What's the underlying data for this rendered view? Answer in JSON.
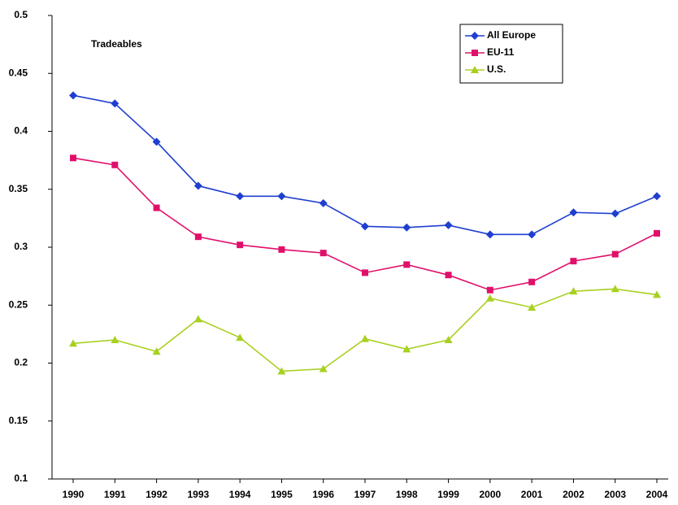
{
  "chart_data": {
    "type": "line",
    "annotation": "Tradeables",
    "categories": [
      "1990",
      "1991",
      "1992",
      "1993",
      "1994",
      "1995",
      "1996",
      "1997",
      "1998",
      "1999",
      "2000",
      "2001",
      "2002",
      "2003",
      "2004"
    ],
    "series": [
      {
        "name": "All Europe",
        "color": "#1f3fd0",
        "marker": "diamond",
        "values": [
          0.431,
          0.424,
          0.391,
          0.353,
          0.344,
          0.344,
          0.338,
          0.318,
          0.317,
          0.319,
          0.311,
          0.311,
          0.33,
          0.329,
          0.344
        ]
      },
      {
        "name": "EU-11",
        "color": "#e0106a",
        "marker": "square",
        "values": [
          0.377,
          0.371,
          0.334,
          0.309,
          0.302,
          0.298,
          0.295,
          0.278,
          0.285,
          0.276,
          0.263,
          0.27,
          0.288,
          0.294,
          0.312
        ]
      },
      {
        "name": "U.S.",
        "color": "#a8d020",
        "marker": "triangle",
        "values": [
          0.217,
          0.22,
          0.21,
          0.238,
          0.222,
          0.193,
          0.195,
          0.221,
          0.212,
          0.22,
          0.256,
          0.248,
          0.262,
          0.264,
          0.259
        ]
      }
    ],
    "ylim": [
      0.1,
      0.5
    ],
    "yticks": [
      0.1,
      0.15,
      0.2,
      0.25,
      0.3,
      0.35,
      0.4,
      0.45,
      0.5
    ],
    "grid": false,
    "legend": "top-right"
  }
}
